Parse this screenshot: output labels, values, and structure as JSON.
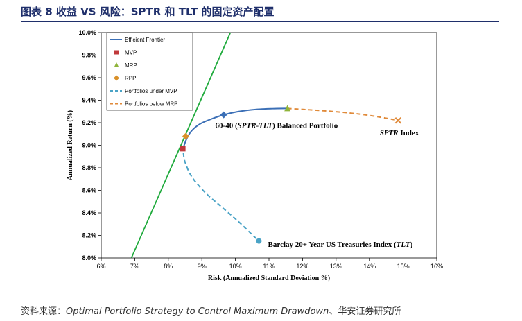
{
  "figure": {
    "title": "图表 8 收益 VS 风险：SPTR 和 TLT 的固定资产配置",
    "source_prefix": "资料来源：",
    "source_title": "Optimal Portfolio Strategy to Control Maximum Drawdown",
    "source_suffix": "、华安证券研究所"
  },
  "colors": {
    "frontier": "#3b6fb6",
    "mvp": "#c0393b",
    "mrp": "#8fb43a",
    "rpp": "#d9902a",
    "under_mvp": "#4aa3c6",
    "below_mrp": "#e08a3a",
    "tangent": "#1faa3c",
    "axis": "#000000"
  },
  "chart_data": {
    "type": "line",
    "xlabel": "Risk (Annualized Standard Deviation %)",
    "ylabel": "Annualized Return (%)",
    "xlim": [
      6,
      16
    ],
    "ylim": [
      8.0,
      10.0
    ],
    "x_ticks": [
      6,
      7,
      8,
      9,
      10,
      11,
      12,
      13,
      14,
      15,
      16
    ],
    "x_tick_labels": [
      "6%",
      "7%",
      "8%",
      "9%",
      "10%",
      "11%",
      "12%",
      "13%",
      "14%",
      "15%",
      "16%"
    ],
    "y_ticks": [
      8.0,
      8.2,
      8.4,
      8.6,
      8.8,
      9.0,
      9.2,
      9.4,
      9.6,
      9.8,
      10.0
    ],
    "y_tick_labels": [
      "8.0%",
      "8.2%",
      "8.4%",
      "8.6%",
      "8.8%",
      "9.0%",
      "9.2%",
      "9.4%",
      "9.6%",
      "9.8%",
      "10.0%"
    ],
    "grid": false,
    "legend_position": "top-left",
    "legend": [
      {
        "key": "frontier",
        "label": "Efficient Frontier",
        "style": "solid-line"
      },
      {
        "key": "mvp",
        "label": "MVP",
        "style": "square"
      },
      {
        "key": "mrp",
        "label": "MRP",
        "style": "triangle"
      },
      {
        "key": "rpp",
        "label": "RPP",
        "style": "diamond"
      },
      {
        "key": "under_mvp",
        "label": "Portfolios under MVP",
        "style": "dashed-line"
      },
      {
        "key": "below_mrp",
        "label": "Portfolios below MRP",
        "style": "dashed-line"
      }
    ],
    "series": [
      {
        "name": "Efficient Frontier",
        "key": "frontier",
        "x": [
          8.45,
          8.55,
          8.7,
          8.95,
          9.3,
          9.65,
          10.1,
          10.6,
          11.1,
          11.55
        ],
        "y": [
          8.98,
          9.06,
          9.13,
          9.19,
          9.235,
          9.27,
          9.3,
          9.318,
          9.325,
          9.327
        ]
      },
      {
        "name": "Portfolios under MVP",
        "key": "under_mvp",
        "x": [
          8.45,
          8.5,
          8.7,
          9.1,
          9.6,
          10.1,
          10.45,
          10.7
        ],
        "y": [
          8.93,
          8.85,
          8.72,
          8.58,
          8.45,
          8.32,
          8.22,
          8.15
        ]
      },
      {
        "name": "Portfolios below MRP",
        "key": "below_mrp",
        "x": [
          11.55,
          12.2,
          12.9,
          13.6,
          14.3,
          14.85
        ],
        "y": [
          9.327,
          9.315,
          9.3,
          9.28,
          9.25,
          9.22
        ]
      },
      {
        "name": "Tangent line",
        "key": "tangent",
        "x": [
          6.9,
          9.85
        ],
        "y": [
          8.0,
          10.0
        ]
      }
    ],
    "points": [
      {
        "name": "MVP",
        "key": "mvp",
        "shape": "square",
        "x": 8.43,
        "y": 8.97
      },
      {
        "name": "MRP",
        "key": "mrp",
        "shape": "triangle",
        "x": 11.55,
        "y": 9.327
      },
      {
        "name": "RPP",
        "key": "rpp",
        "shape": "diamond",
        "x": 8.52,
        "y": 9.08
      },
      {
        "name": "60-40 Balanced Portfolio",
        "key": "frontier",
        "shape": "diamond",
        "x": 9.65,
        "y": 9.27
      },
      {
        "name": "SPTR Index",
        "key": "below_mrp",
        "shape": "x",
        "x": 14.85,
        "y": 9.22
      },
      {
        "name": "Barclay 20+ Year US Treasuries Index",
        "key": "under_mvp",
        "shape": "circle",
        "x": 10.7,
        "y": 8.15
      }
    ],
    "annotations": {
      "balanced": {
        "prefix": "60-40 (",
        "italic": "SPTR-TLT",
        "suffix": ") Balanced Portfolio",
        "x": 9.4,
        "y": 9.155
      },
      "sptr": {
        "italic": "SPTR",
        "suffix": " Index",
        "x": 14.3,
        "y": 9.09
      },
      "barclay": {
        "prefix": "Barclay 20+ Year US Treasuries Index (",
        "italic": "TLT",
        "suffix": ")",
        "x": 10.97,
        "y": 8.1
      }
    }
  }
}
